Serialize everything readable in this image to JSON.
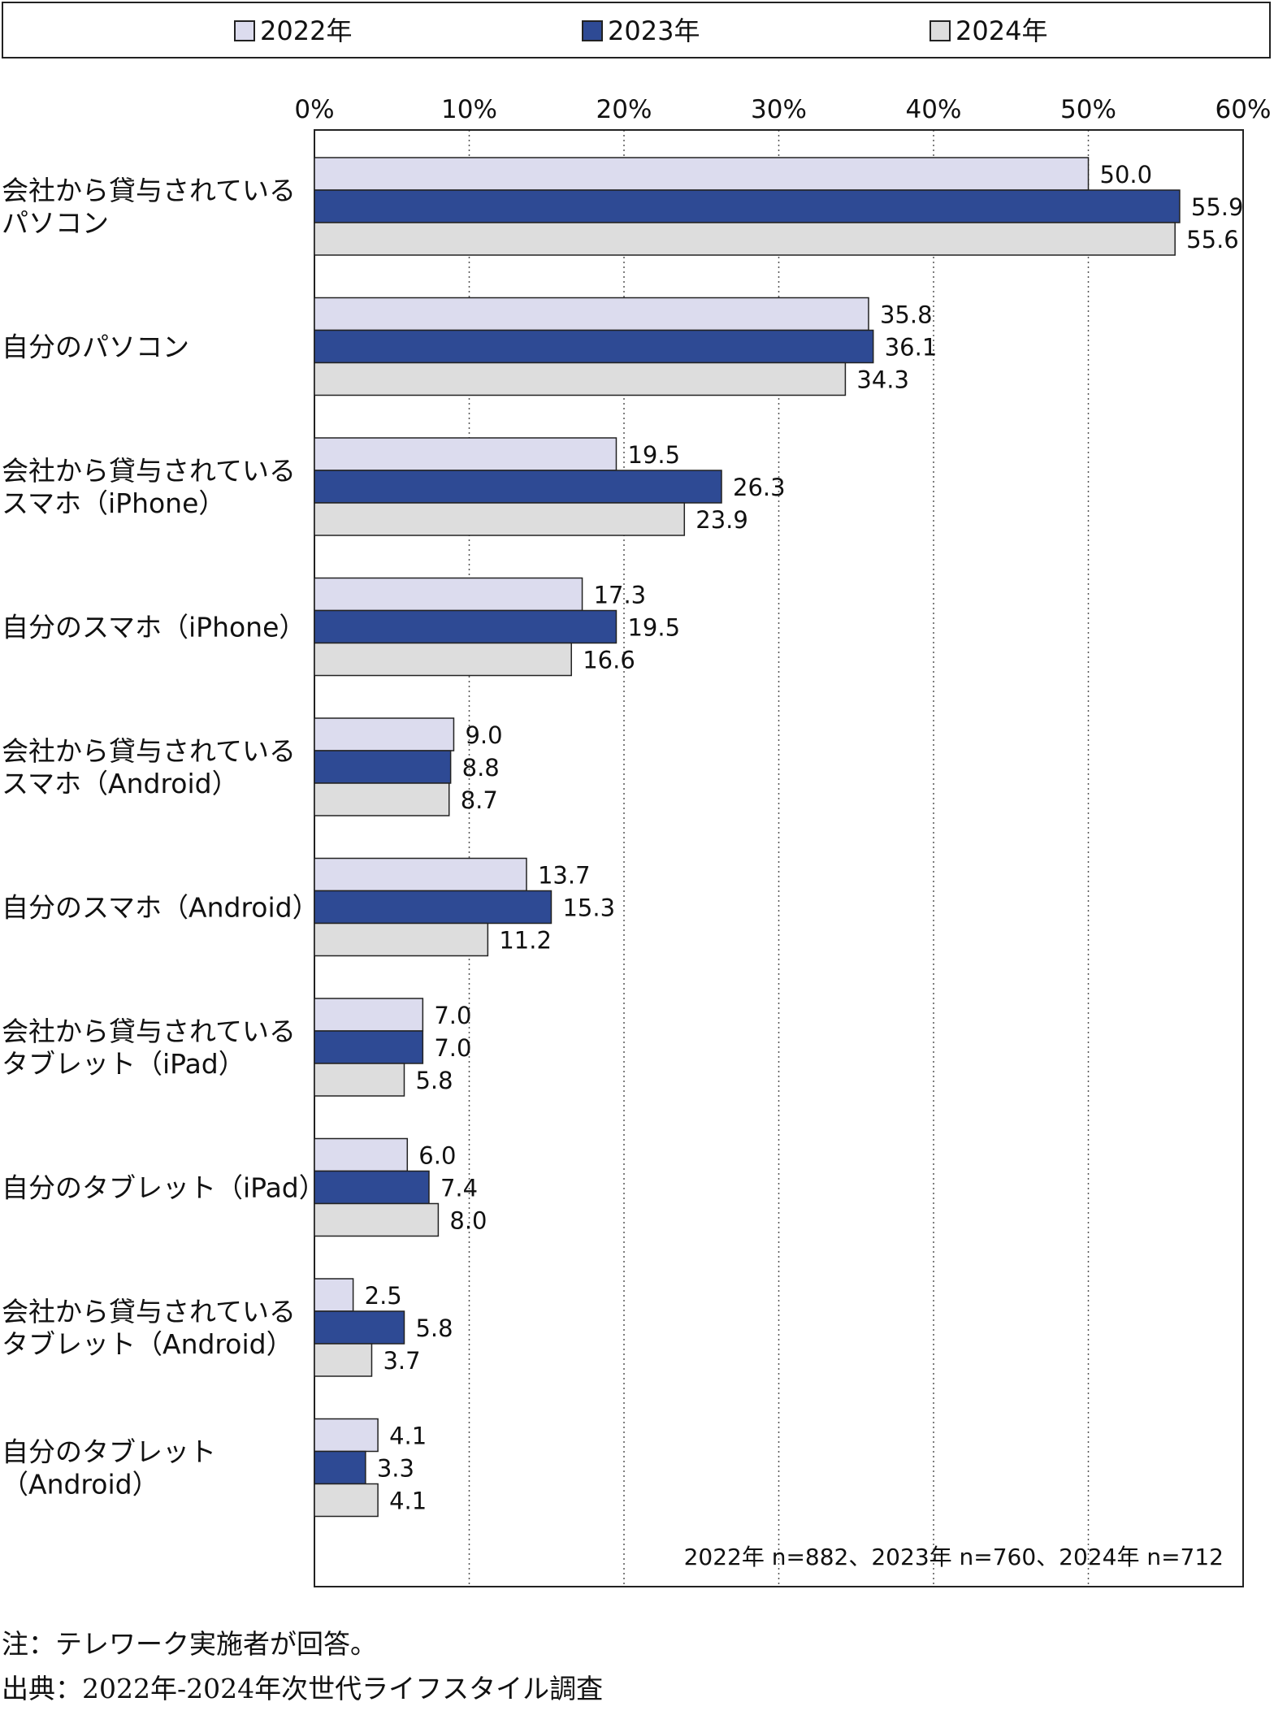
{
  "legend": {
    "items": [
      {
        "label": "2022年",
        "color": "#dcdcee"
      },
      {
        "label": "2023年",
        "color": "#2e4a94"
      },
      {
        "label": "2024年",
        "color": "#dddddd"
      }
    ]
  },
  "sample_note": "2022年 n=882、2023年 n=760、2024年 n=712",
  "footnotes": {
    "note": "注：テレワーク実施者が回答。",
    "source": "出典：2022年-2024年次世代ライフスタイル調査"
  },
  "chart_data": {
    "type": "bar",
    "orientation": "horizontal",
    "categories": [
      [
        "会社から貸与されている",
        "パソコン"
      ],
      [
        "自分のパソコン"
      ],
      [
        "会社から貸与されている",
        "スマホ（iPhone）"
      ],
      [
        "自分のスマホ（iPhone）"
      ],
      [
        "会社から貸与されている",
        "スマホ（Android）"
      ],
      [
        "自分のスマホ（Android）"
      ],
      [
        "会社から貸与されている",
        "タブレット（iPad）"
      ],
      [
        "自分のタブレット（iPad）"
      ],
      [
        "会社から貸与されている",
        "タブレット（Android）"
      ],
      [
        "自分のタブレット",
        "（Android）"
      ]
    ],
    "series": [
      {
        "name": "2022年",
        "color": "#dcdcee",
        "values": [
          50.0,
          35.8,
          19.5,
          17.3,
          9.0,
          13.7,
          7.0,
          6.0,
          2.5,
          4.1
        ]
      },
      {
        "name": "2023年",
        "color": "#2e4a94",
        "values": [
          55.9,
          36.1,
          26.3,
          19.5,
          8.8,
          15.3,
          7.0,
          7.4,
          5.8,
          3.3
        ]
      },
      {
        "name": "2024年",
        "color": "#dddddd",
        "values": [
          55.6,
          34.3,
          23.9,
          16.6,
          8.7,
          11.2,
          5.8,
          8.0,
          3.7,
          4.1
        ]
      }
    ],
    "xlim": [
      0,
      60
    ],
    "ticks": [
      0,
      10,
      20,
      30,
      40,
      50,
      60
    ],
    "tick_suffix": "%",
    "grid": true,
    "legend_position": "top"
  }
}
